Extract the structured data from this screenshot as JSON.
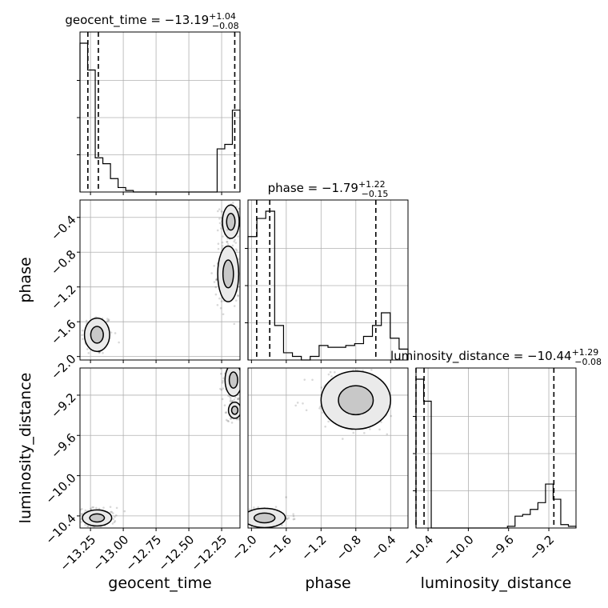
{
  "chart_data": {
    "type": "corner",
    "parameters": [
      "geocent_time",
      "phase",
      "luminosity_distance"
    ],
    "axis_labels": {
      "x": [
        "geocent_time",
        "phase",
        "luminosity_distance"
      ],
      "y": [
        "phase",
        "luminosity_distance"
      ]
    },
    "titles": [
      {
        "param": "geocent_time",
        "median": "-13.19",
        "plus": "+1.04",
        "minus": "-0.08"
      },
      {
        "param": "phase",
        "median": "-1.79",
        "plus": "+1.22",
        "minus": "-0.15"
      },
      {
        "param": "luminosity_distance",
        "median": "-10.44",
        "plus": "+1.29",
        "minus": "-0.08"
      }
    ],
    "ranges": {
      "geocent_time": [
        -13.33,
        -12.11
      ],
      "phase": [
        -2.04,
        -0.2
      ],
      "luminosity_distance": [
        -10.52,
        -8.93
      ]
    },
    "ticks": {
      "geocent_time": [
        -13.25,
        -13.0,
        -12.75,
        -12.5,
        -12.25
      ],
      "phase_x": [
        -2.0,
        -1.6,
        -1.2,
        -0.8,
        -0.4
      ],
      "phase_y": [
        -2.0,
        -1.6,
        -1.2,
        -0.8,
        -0.4
      ],
      "luminosity_distance_x": [
        -10.4,
        -10.0,
        -9.6,
        -9.2
      ],
      "luminosity_distance_y": [
        -10.4,
        -10.0,
        -9.6,
        -9.2
      ]
    },
    "tick_labels": {
      "geocent_time": [
        "−13.25",
        "−13.00",
        "−12.75",
        "−12.50",
        "−12.25"
      ],
      "phase_x": [
        "−2.0",
        "−1.6",
        "−1.2",
        "−0.8",
        "−0.4"
      ],
      "phase_y": [
        "−2.0",
        "−1.6",
        "−1.2",
        "−0.8",
        "−0.4"
      ],
      "luminosity_distance_x": [
        "−10.4",
        "−10.0",
        "−9.6",
        "−9.2"
      ],
      "luminosity_distance_y": [
        "−10.4",
        "−10.0",
        "−9.6",
        "−9.2"
      ]
    },
    "histograms": {
      "geocent_time": [
        1.0,
        0.82,
        0.23,
        0.19,
        0.09,
        0.03,
        0.01,
        0,
        0,
        0,
        0,
        0,
        0,
        0,
        0,
        0,
        0,
        0,
        0.29,
        0.32,
        0.55
      ],
      "phase": [
        0.68,
        0.78,
        0.82,
        0.19,
        0.04,
        0.02,
        0.0,
        0.02,
        0.08,
        0.07,
        0.07,
        0.08,
        0.09,
        0.13,
        0.19,
        0.26,
        0.12,
        0.06
      ],
      "luminosity_distance": [
        0.88,
        0.75,
        0.0,
        0.0,
        0.0,
        0.0,
        0.0,
        0.0,
        0.0,
        0.0,
        0.0,
        0.0,
        0.01,
        0.07,
        0.08,
        0.11,
        0.15,
        0.26,
        0.17,
        0.02,
        0.01
      ]
    },
    "quantile_lines": {
      "geocent_time": [
        -13.27,
        -13.19,
        -12.15
      ],
      "phase": [
        -1.94,
        -1.79,
        -0.57
      ],
      "luminosity_distance": [
        -10.52,
        -10.44,
        -9.15
      ]
    },
    "scatter_clusters": {
      "phase_vs_geocent_time": [
        {
          "x": -13.2,
          "y": -1.75,
          "sx": 0.06,
          "sy": 0.12
        },
        {
          "x": -12.18,
          "y": -0.45,
          "sx": 0.04,
          "sy": 0.12
        },
        {
          "x": -12.2,
          "y": -1.05,
          "sx": 0.05,
          "sy": 0.2
        }
      ],
      "luminosity_distance_vs_geocent_time": [
        {
          "x": -13.2,
          "y": -10.42,
          "sx": 0.07,
          "sy": 0.05
        },
        {
          "x": -12.16,
          "y": -9.05,
          "sx": 0.04,
          "sy": 0.1
        },
        {
          "x": -12.15,
          "y": -9.35,
          "sx": 0.03,
          "sy": 0.05
        }
      ],
      "luminosity_distance_vs_phase": [
        {
          "x": -1.85,
          "y": -10.42,
          "sx": 0.15,
          "sy": 0.06
        },
        {
          "x": -0.8,
          "y": -9.25,
          "sx": 0.25,
          "sy": 0.18
        }
      ]
    },
    "grid": true
  }
}
